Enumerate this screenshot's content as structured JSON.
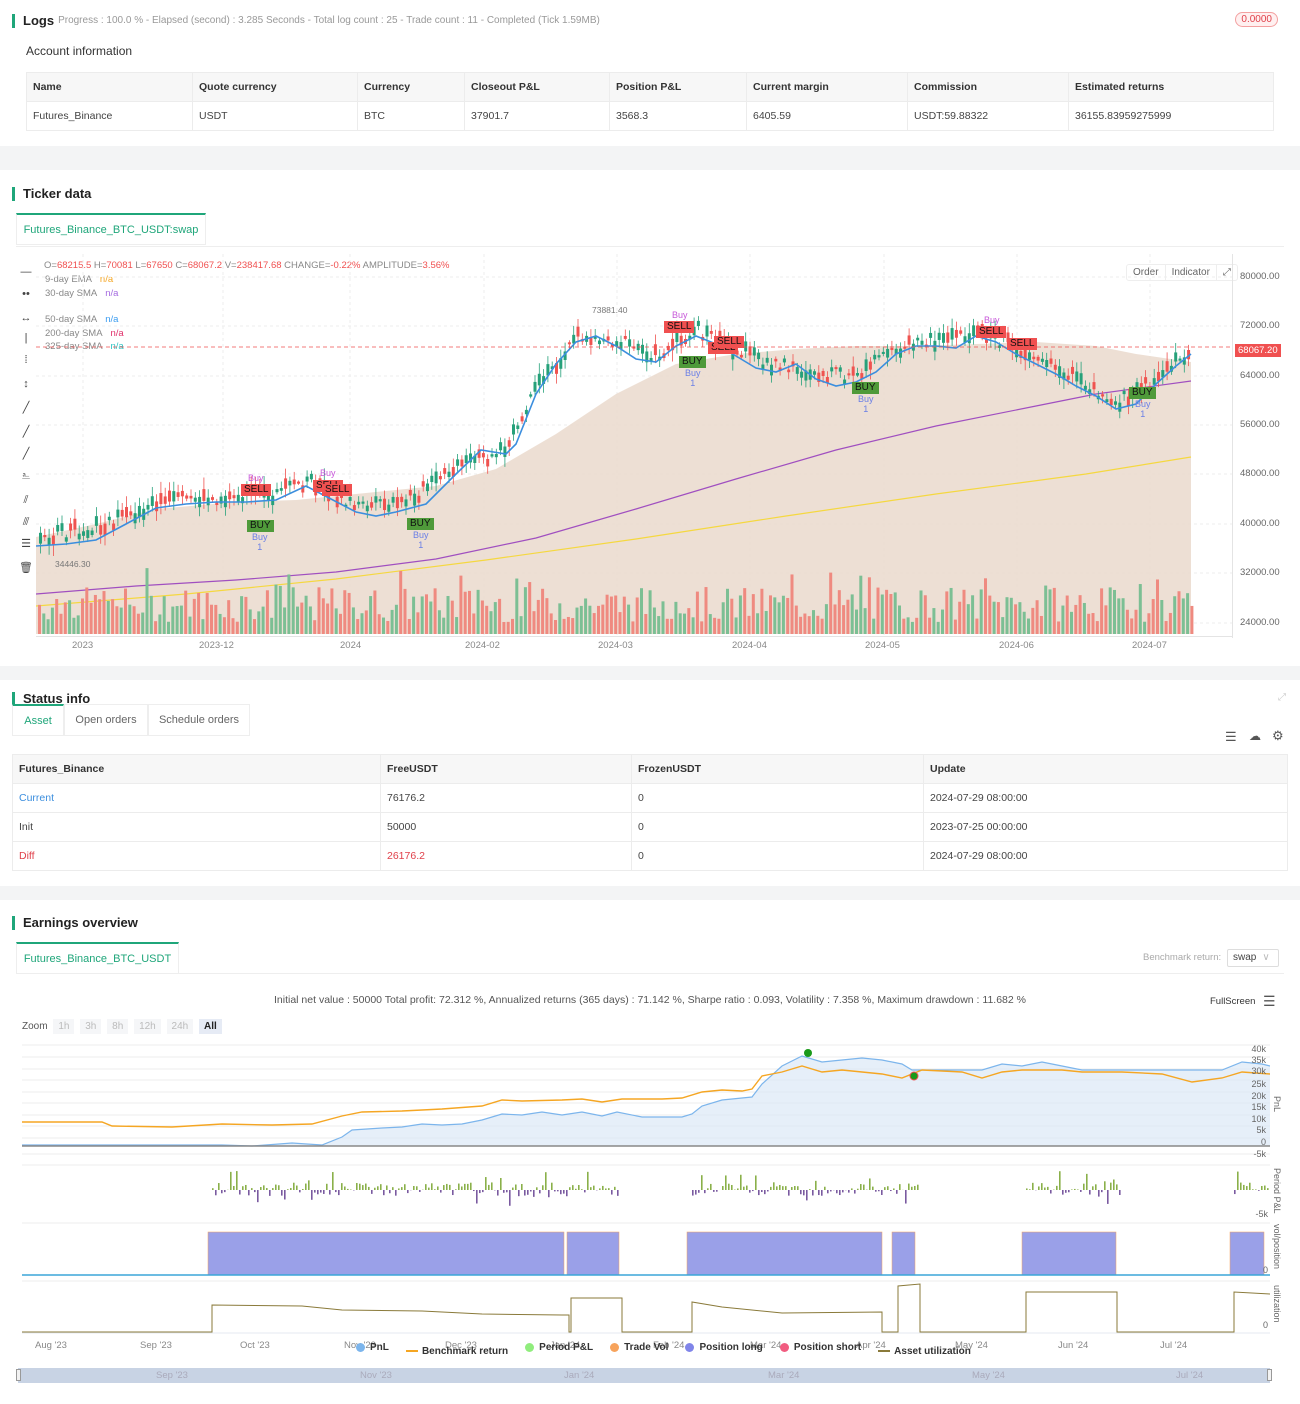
{
  "logs": {
    "title": "Logs",
    "progress_text": "Progress : 100.0 % - Elapsed (second) : 3.285  Seconds - Total log count : 25 - Trade count : 11 - Completed (Tick 1.59MB)",
    "badge": "0.0000",
    "account_title": "Account information",
    "account_table": {
      "headers": [
        "Name",
        "Quote currency",
        "Currency",
        "Closeout P&L",
        "Position P&L",
        "Current margin",
        "Commission",
        "Estimated returns"
      ],
      "row": [
        "Futures_Binance",
        "USDT",
        "BTC",
        "37901.7",
        "3568.3",
        "6405.59",
        "USDT:59.88322",
        "36155.83959275999"
      ]
    }
  },
  "ticker": {
    "title": "Ticker data",
    "tab": "Futures_Binance_BTC_USDT:swap",
    "ohlc": {
      "o_label": "O=",
      "o": "68215.5",
      "h_label": "H=",
      "h": "70081",
      "l_label": "L=",
      "l": "67650",
      "c_label": "C=",
      "c": "68067.2",
      "v_label": "V=",
      "v": "238417.68",
      "change_label": "CHANGE=",
      "change": "-0.22%",
      "amp_label": "AMPLITUDE=",
      "amp": "3.56%"
    },
    "indicators": [
      {
        "name": "9-day EMA",
        "value": "n/a",
        "color": "#f5a623"
      },
      {
        "name": "30-day SMA",
        "value": "n/a",
        "color": "#a56be0"
      },
      {
        "name": "50-day SMA",
        "value": "n/a",
        "color": "#3b9cf0"
      },
      {
        "name": "200-day SMA",
        "value": "n/a",
        "color": "#e0306a"
      },
      {
        "name": "325-day SMA",
        "value": "n/a",
        "color": "#2bc4c4"
      }
    ],
    "buttons": {
      "order": "Order",
      "indicator": "Indicator"
    },
    "price_tag": "68067.20",
    "max_label": "73881.40",
    "min_label": "34446.30",
    "y_axis": [
      "80000.00",
      "72000.00",
      "64000.00",
      "56000.00",
      "48000.00",
      "40000.00",
      "32000.00",
      "24000.00"
    ],
    "x_axis": [
      "2023",
      "2023-12",
      "2024",
      "2024-02",
      "2024-03",
      "2024-04",
      "2024-05",
      "2024-06",
      "2024-07"
    ],
    "signals": {
      "sell": "SELL",
      "buy": "BUY",
      "buy_small": "Buy",
      "qty": "1"
    }
  },
  "status": {
    "title": "Status info",
    "tabs": [
      "Asset",
      "Open orders",
      "Schedule orders"
    ],
    "table": {
      "headers": [
        "Futures_Binance",
        "FreeUSDT",
        "FrozenUSDT",
        "Update"
      ],
      "rows": [
        [
          "Current",
          "76176.2",
          "0",
          "2024-07-29 08:00:00"
        ],
        [
          "Init",
          "50000",
          "0",
          "2023-07-25 00:00:00"
        ],
        [
          "Diff",
          "26176.2",
          "0",
          "2024-07-29 08:00:00"
        ]
      ]
    }
  },
  "earnings": {
    "title": "Earnings overview",
    "tab": "Futures_Binance_BTC_USDT",
    "benchmark_label": "Benchmark return:",
    "benchmark_value": "swap",
    "summary": "Initial net value : 50000 Total profit: 72.312 %, Annualized returns (365 days) : 71.142 %, Sharpe ratio : 0.093, Volatility : 7.358 %, Maximum drawdown : 11.682 %",
    "fullscreen": "FullScreen",
    "zoom_label": "Zoom",
    "zoom_options": [
      "1h",
      "3h",
      "8h",
      "12h",
      "24h",
      "All"
    ],
    "pnl_axis": [
      "40k",
      "35k",
      "30k",
      "25k",
      "20k",
      "15k",
      "10k",
      "5k",
      "0",
      "-5k"
    ],
    "panel_titles": [
      "PnL",
      "Period P&L",
      "vol/position",
      "utilization"
    ],
    "period_axis": "-5k",
    "zero": "0",
    "x_axis": [
      "Aug '23",
      "Sep '23",
      "Oct '23",
      "Nov '23",
      "Dec '23",
      "Jan '24",
      "Feb '24",
      "Mar '24",
      "Apr '24",
      "May '24",
      "Jun '24",
      "Jul '24"
    ],
    "legend": [
      {
        "label": "PnL",
        "color": "#7cb5ec"
      },
      {
        "label": "Benchmark return",
        "color": "#f5a623"
      },
      {
        "label": "Period P&L",
        "color": "#90ed7d"
      },
      {
        "label": "Trade Vol",
        "color": "#f7a35c"
      },
      {
        "label": "Position long",
        "color": "#8085e9"
      },
      {
        "label": "Position short",
        "color": "#f15c80"
      },
      {
        "label": "Asset utilization",
        "color": "#8a7a3a"
      }
    ],
    "navigator": [
      "Sep '23",
      "Nov '23",
      "Jan '24",
      "Mar '24",
      "May '24",
      "Jul '24"
    ]
  }
}
